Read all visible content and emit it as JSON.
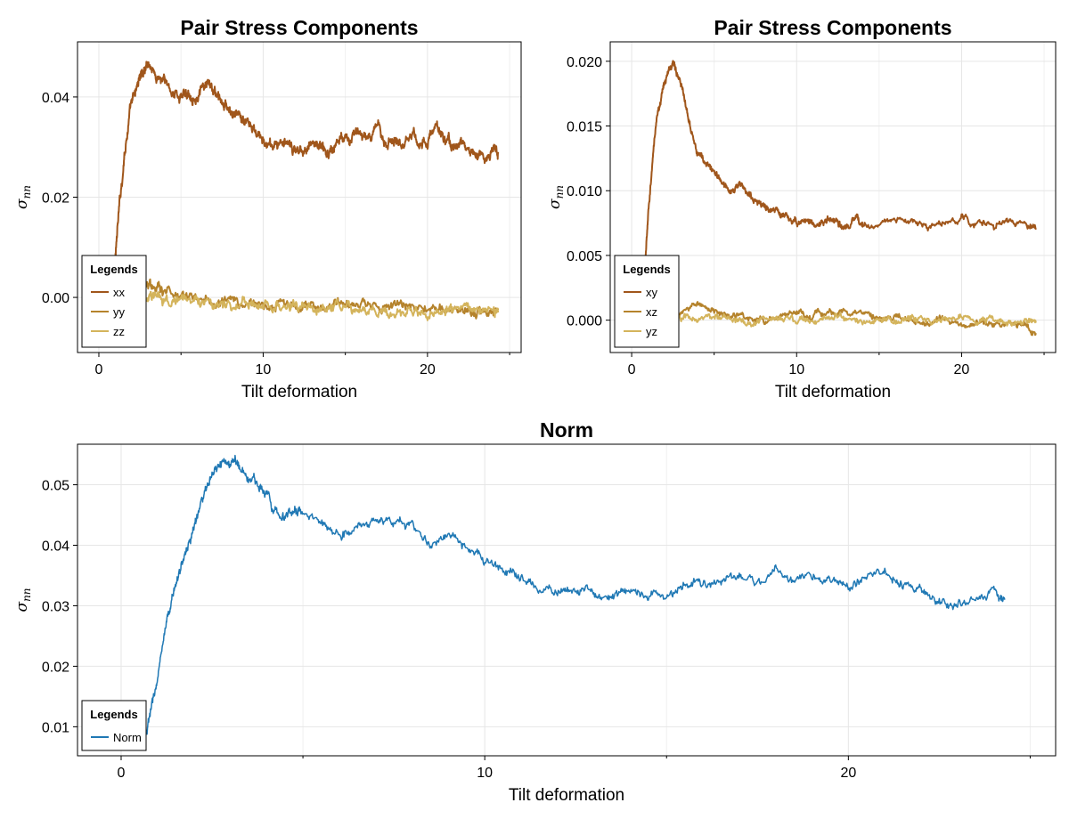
{
  "chart_data": [
    {
      "type": "line",
      "title": "Pair Stress Components",
      "xlabel": "Tilt deformation",
      "ylabel": "σ",
      "ylabel_sub": "nn",
      "xlim": [
        -1.3,
        25.7
      ],
      "ylim": [
        -0.011,
        0.051
      ],
      "xticks": [
        0,
        10,
        20
      ],
      "xtick_labels": [
        "0",
        "10",
        "20"
      ],
      "xminor": [
        5,
        15,
        25
      ],
      "yticks": [
        0.0,
        0.02,
        0.04
      ],
      "ytick_labels": [
        "0.00",
        "0.02",
        "0.04"
      ],
      "grid": true,
      "legend": {
        "title": "Legends",
        "placement": "bottom-left"
      },
      "series": [
        {
          "name": "xx",
          "color": "#a0561b",
          "x": [
            0.8,
            1.0,
            1.3,
            1.6,
            1.9,
            2.2,
            2.5,
            2.8,
            3.0,
            3.5,
            4.0,
            4.5,
            5.0,
            5.5,
            6.0,
            6.5,
            6.8,
            7.2,
            7.6,
            8.0,
            8.5,
            9.0,
            9.5,
            10.0,
            10.5,
            11.0,
            11.5,
            12.0,
            12.5,
            13.0,
            13.5,
            14.0,
            14.5,
            15.0,
            15.5,
            16.0,
            16.5,
            17.0,
            17.5,
            18.0,
            18.5,
            19.0,
            19.5,
            20.0,
            20.5,
            21.0,
            21.5,
            22.0,
            22.5,
            23.0,
            23.5,
            24.0,
            24.3
          ],
          "y": [
            0.0,
            0.009,
            0.02,
            0.03,
            0.037,
            0.041,
            0.044,
            0.046,
            0.047,
            0.044,
            0.043,
            0.041,
            0.04,
            0.041,
            0.04,
            0.042,
            0.042,
            0.04,
            0.038,
            0.037,
            0.036,
            0.035,
            0.033,
            0.031,
            0.03,
            0.031,
            0.03,
            0.029,
            0.03,
            0.031,
            0.03,
            0.029,
            0.031,
            0.033,
            0.032,
            0.033,
            0.031,
            0.034,
            0.031,
            0.032,
            0.031,
            0.033,
            0.031,
            0.031,
            0.034,
            0.032,
            0.03,
            0.031,
            0.029,
            0.029,
            0.027,
            0.03,
            0.029
          ]
        },
        {
          "name": "yy",
          "color": "#b5832c",
          "x": [
            0.8,
            1.0,
            1.3,
            1.6,
            2.0,
            2.5,
            3.0,
            3.5,
            4.0,
            5.0,
            6.0,
            7.0,
            8.0,
            9.0,
            10.0,
            11.0,
            12.0,
            13.0,
            14.0,
            15.0,
            16.0,
            17.0,
            18.0,
            19.0,
            20.0,
            21.0,
            22.0,
            23.0,
            24.0,
            24.3
          ],
          "y": [
            0.0,
            0.003,
            0.004,
            0.004,
            0.0035,
            0.003,
            0.0025,
            0.0015,
            0.001,
            0.0005,
            0.0,
            -0.0005,
            -0.001,
            -0.0015,
            -0.0015,
            -0.0015,
            -0.002,
            -0.0015,
            -0.002,
            -0.0015,
            -0.002,
            -0.0015,
            -0.002,
            -0.002,
            -0.0025,
            -0.0025,
            -0.002,
            -0.0025,
            -0.003,
            -0.0025
          ]
        },
        {
          "name": "zz",
          "color": "#d4b45c",
          "x": [
            0.8,
            1.0,
            1.3,
            1.6,
            2.0,
            2.5,
            3.0,
            3.5,
            4.0,
            5.0,
            6.0,
            7.0,
            8.0,
            9.0,
            10.0,
            11.0,
            12.0,
            13.0,
            14.0,
            15.0,
            16.0,
            17.0,
            18.0,
            19.0,
            20.0,
            21.0,
            22.0,
            23.0,
            24.0,
            24.3
          ],
          "y": [
            0.0,
            0.001,
            0.0015,
            0.001,
            0.0005,
            0.0005,
            0.0,
            0.0,
            0.0,
            -0.0005,
            -0.0005,
            -0.001,
            -0.0015,
            -0.0015,
            -0.002,
            -0.002,
            -0.002,
            -0.0025,
            -0.0025,
            -0.0025,
            -0.0025,
            -0.0025,
            -0.003,
            -0.0025,
            -0.003,
            -0.003,
            -0.0025,
            -0.003,
            -0.0035,
            -0.003
          ]
        }
      ]
    },
    {
      "type": "line",
      "title": "Pair Stress Components",
      "xlabel": "Tilt deformation",
      "ylabel": "σ",
      "ylabel_sub": "nn",
      "xlim": [
        -1.3,
        25.7
      ],
      "ylim": [
        -0.0025,
        0.0215
      ],
      "xticks": [
        0,
        10,
        20
      ],
      "xtick_labels": [
        "0",
        "10",
        "20"
      ],
      "xminor": [
        5,
        15,
        25
      ],
      "yticks": [
        0.0,
        0.005,
        0.01,
        0.015,
        0.02
      ],
      "ytick_labels": [
        "0.000",
        "0.005",
        "0.010",
        "0.015",
        "0.020"
      ],
      "grid": true,
      "legend": {
        "title": "Legends",
        "placement": "bottom-left"
      },
      "series": [
        {
          "name": "xy",
          "color": "#a0561b",
          "x": [
            0.5,
            0.8,
            1.0,
            1.3,
            1.6,
            1.9,
            2.2,
            2.5,
            2.8,
            3.2,
            3.6,
            4.0,
            4.5,
            5.0,
            5.5,
            6.0,
            6.5,
            7.0,
            7.5,
            8.0,
            8.5,
            9.0,
            9.5,
            10.0,
            10.5,
            11.0,
            11.5,
            12.0,
            12.5,
            13.0,
            13.5,
            14.0,
            15.0,
            16.0,
            17.0,
            18.0,
            19.0,
            20.0,
            21.0,
            22.0,
            23.0,
            24.0,
            24.5
          ],
          "y": [
            0.0,
            0.004,
            0.008,
            0.013,
            0.016,
            0.018,
            0.019,
            0.02,
            0.019,
            0.017,
            0.015,
            0.013,
            0.012,
            0.0115,
            0.0105,
            0.01,
            0.0105,
            0.0098,
            0.0092,
            0.0088,
            0.0085,
            0.0082,
            0.0078,
            0.0076,
            0.0078,
            0.0075,
            0.0074,
            0.0078,
            0.0075,
            0.007,
            0.0076,
            0.0074,
            0.0075,
            0.0078,
            0.0075,
            0.0072,
            0.0075,
            0.0078,
            0.0075,
            0.0072,
            0.0078,
            0.0072,
            0.007
          ]
        },
        {
          "name": "xz",
          "color": "#b5832c",
          "x": [
            0.5,
            1.0,
            2.0,
            3.0,
            4.0,
            5.0,
            6.0,
            7.0,
            8.0,
            9.0,
            10.0,
            11.0,
            12.0,
            13.0,
            14.0,
            15.0,
            16.0,
            17.0,
            18.0,
            19.0,
            20.0,
            21.0,
            22.0,
            23.0,
            24.0,
            24.5
          ],
          "y": [
            0.0,
            0.0005,
            0.0008,
            0.0005,
            0.0012,
            0.0008,
            0.0004,
            0.0002,
            0.0,
            0.0003,
            0.0006,
            0.0005,
            0.0005,
            0.0008,
            0.0004,
            0.0,
            0.0002,
            0.0,
            -0.0002,
            0.0,
            -0.0003,
            -0.0002,
            -0.0004,
            -0.0002,
            -0.0005,
            -0.001
          ]
        },
        {
          "name": "yz",
          "color": "#d4b45c",
          "x": [
            0.5,
            1.0,
            2.0,
            3.0,
            4.0,
            5.0,
            6.0,
            7.0,
            8.0,
            9.0,
            10.0,
            11.0,
            12.0,
            13.0,
            14.0,
            15.0,
            16.0,
            17.0,
            18.0,
            19.0,
            20.0,
            21.0,
            22.0,
            23.0,
            24.0,
            24.5
          ],
          "y": [
            0.0,
            0.0002,
            0.0003,
            0.0001,
            0.0003,
            0.0001,
            0.0,
            -0.0002,
            -0.0001,
            0.0,
            0.0001,
            0.0,
            0.0003,
            0.0002,
            0.0,
            0.0001,
            0.0,
            -0.0001,
            0.0,
            -0.0002,
            0.0,
            -0.0001,
            0.0,
            -0.0002,
            0.0,
            -0.0002
          ]
        }
      ]
    },
    {
      "type": "line",
      "title": "Norm",
      "xlabel": "Tilt deformation",
      "ylabel": "σ",
      "ylabel_sub": "nn",
      "xlim": [
        -1.2,
        25.7
      ],
      "ylim": [
        0.0052,
        0.0567
      ],
      "xticks": [
        0,
        10,
        20
      ],
      "xtick_labels": [
        "0",
        "10",
        "20"
      ],
      "xminor": [
        5,
        15,
        25
      ],
      "yticks": [
        0.01,
        0.02,
        0.03,
        0.04,
        0.05
      ],
      "ytick_labels": [
        "0.01",
        "0.02",
        "0.03",
        "0.04",
        "0.05"
      ],
      "grid": true,
      "legend": {
        "title": "Legends",
        "placement": "bottom-left"
      },
      "series": [
        {
          "name": "Norm",
          "color": "#1f78b4",
          "x": [
            0.7,
            0.8,
            1.0,
            1.2,
            1.4,
            1.6,
            1.8,
            2.0,
            2.2,
            2.4,
            2.6,
            2.8,
            3.0,
            3.2,
            3.5,
            3.8,
            4.0,
            4.2,
            4.5,
            4.8,
            5.0,
            5.5,
            6.0,
            6.5,
            7.0,
            7.5,
            8.0,
            8.5,
            9.0,
            9.5,
            10.0,
            10.5,
            11.0,
            11.5,
            12.0,
            12.5,
            13.0,
            13.5,
            14.0,
            14.5,
            15.0,
            15.5,
            16.0,
            16.5,
            17.0,
            17.5,
            18.0,
            18.5,
            19.0,
            19.5,
            20.0,
            20.5,
            21.0,
            21.5,
            22.0,
            22.5,
            23.0,
            23.5,
            24.0,
            24.3
          ],
          "y": [
            0.009,
            0.012,
            0.018,
            0.025,
            0.031,
            0.036,
            0.039,
            0.043,
            0.047,
            0.05,
            0.052,
            0.054,
            0.053,
            0.054,
            0.051,
            0.05,
            0.049,
            0.046,
            0.045,
            0.046,
            0.045,
            0.044,
            0.042,
            0.043,
            0.044,
            0.044,
            0.043,
            0.04,
            0.042,
            0.039,
            0.037,
            0.036,
            0.035,
            0.033,
            0.032,
            0.033,
            0.032,
            0.031,
            0.033,
            0.032,
            0.031,
            0.034,
            0.033,
            0.034,
            0.035,
            0.034,
            0.036,
            0.034,
            0.035,
            0.034,
            0.033,
            0.035,
            0.036,
            0.033,
            0.032,
            0.031,
            0.03,
            0.031,
            0.033,
            0.031
          ]
        }
      ]
    }
  ]
}
